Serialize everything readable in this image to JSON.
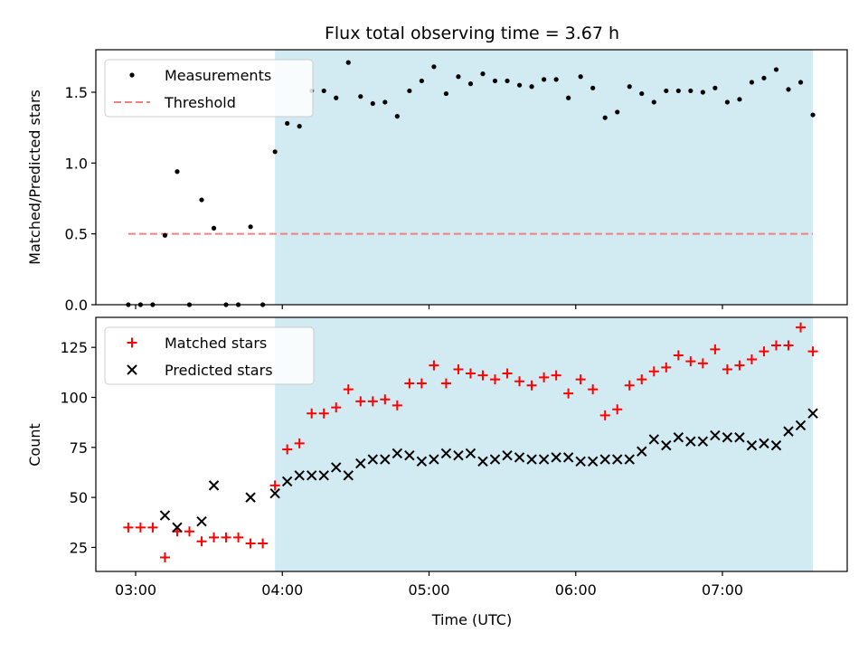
{
  "chart_data": {
    "title": "Flux total observing time = 3.67 h",
    "xlabel": "Time (UTC)",
    "x_ticks": [
      "03:00",
      "04:00",
      "05:00",
      "06:00",
      "07:00"
    ],
    "colors": {
      "highlight": "#add8e6",
      "threshold": "#f08080",
      "measurements": "#000000",
      "matched": "#ff0000",
      "predicted": "#000000"
    },
    "highlight_span": [
      "03:57",
      "07:37"
    ],
    "panels": [
      {
        "type": "scatter",
        "ylabel": "Matched/Predicted stars",
        "ylim": [
          0,
          1.8
        ],
        "yticks": [
          "0.0",
          "0.5",
          "1.0",
          "1.5"
        ],
        "legend": {
          "location": "upper-left",
          "entries": [
            "Measurements",
            "Threshold"
          ]
        },
        "threshold": {
          "name": "Threshold",
          "value": 0.5,
          "x_range": [
            "02:57",
            "07:37"
          ]
        },
        "series": [
          {
            "name": "Measurements",
            "marker": "dot",
            "x": [
              "02:57",
              "03:02",
              "03:07",
              "03:12",
              "03:17",
              "03:22",
              "03:27",
              "03:32",
              "03:37",
              "03:42",
              "03:47",
              "03:52",
              "03:57",
              "04:02",
              "04:07",
              "04:12",
              "04:17",
              "04:22",
              "04:27",
              "04:32",
              "04:37",
              "04:42",
              "04:47",
              "04:52",
              "04:57",
              "05:02",
              "05:07",
              "05:12",
              "05:17",
              "05:22",
              "05:27",
              "05:32",
              "05:37",
              "05:42",
              "05:47",
              "05:52",
              "05:57",
              "06:02",
              "06:07",
              "06:12",
              "06:17",
              "06:22",
              "06:27",
              "06:32",
              "06:37",
              "06:42",
              "06:47",
              "06:52",
              "06:57",
              "07:02",
              "07:07",
              "07:12",
              "07:17",
              "07:22",
              "07:27",
              "07:32",
              "07:37"
            ],
            "y": [
              0.0,
              0.0,
              0.0,
              0.49,
              0.94,
              0.0,
              0.74,
              0.54,
              0.0,
              0.0,
              0.55,
              0.0,
              1.08,
              1.28,
              1.26,
              1.51,
              1.51,
              1.46,
              1.71,
              1.47,
              1.42,
              1.43,
              1.33,
              1.51,
              1.58,
              1.68,
              1.49,
              1.61,
              1.56,
              1.63,
              1.58,
              1.58,
              1.55,
              1.54,
              1.59,
              1.59,
              1.46,
              1.61,
              1.53,
              1.32,
              1.36,
              1.54,
              1.49,
              1.43,
              1.51,
              1.51,
              1.51,
              1.5,
              1.53,
              1.43,
              1.45,
              1.57,
              1.6,
              1.66,
              1.52,
              1.57,
              1.34
            ]
          }
        ]
      },
      {
        "type": "scatter",
        "ylabel": "Count",
        "ylim": [
          13,
          140
        ],
        "yticks": [
          "25",
          "50",
          "75",
          "100",
          "125"
        ],
        "legend": {
          "location": "upper-left",
          "entries": [
            "Matched stars",
            "Predicted stars"
          ]
        },
        "series": [
          {
            "name": "Matched stars",
            "marker": "plus",
            "x": [
              "02:57",
              "03:02",
              "03:07",
              "03:12",
              "03:17",
              "03:22",
              "03:27",
              "03:32",
              "03:37",
              "03:42",
              "03:47",
              "03:52",
              "03:57",
              "04:02",
              "04:07",
              "04:12",
              "04:17",
              "04:22",
              "04:27",
              "04:32",
              "04:37",
              "04:42",
              "04:47",
              "04:52",
              "04:57",
              "05:02",
              "05:07",
              "05:12",
              "05:17",
              "05:22",
              "05:27",
              "05:32",
              "05:37",
              "05:42",
              "05:47",
              "05:52",
              "05:57",
              "06:02",
              "06:07",
              "06:12",
              "06:17",
              "06:22",
              "06:27",
              "06:32",
              "06:37",
              "06:42",
              "06:47",
              "06:52",
              "06:57",
              "07:02",
              "07:07",
              "07:12",
              "07:17",
              "07:22",
              "07:27",
              "07:32",
              "07:37"
            ],
            "y": [
              35,
              35,
              35,
              20,
              33,
              33,
              28,
              30,
              30,
              30,
              27,
              27,
              56,
              74,
              77,
              92,
              92,
              95,
              104,
              98,
              98,
              99,
              96,
              107,
              107,
              116,
              107,
              114,
              112,
              111,
              109,
              112,
              108,
              106,
              110,
              111,
              102,
              109,
              104,
              91,
              94,
              106,
              109,
              113,
              115,
              121,
              118,
              117,
              124,
              114,
              116,
              119,
              123,
              126,
              126,
              135,
              123
            ]
          },
          {
            "name": "Predicted stars",
            "marker": "x",
            "x": [
              "03:12",
              "03:17",
              "03:27",
              "03:32",
              "03:47",
              "03:57",
              "04:02",
              "04:07",
              "04:12",
              "04:17",
              "04:22",
              "04:27",
              "04:32",
              "04:37",
              "04:42",
              "04:47",
              "04:52",
              "04:57",
              "05:02",
              "05:07",
              "05:12",
              "05:17",
              "05:22",
              "05:27",
              "05:32",
              "05:37",
              "05:42",
              "05:47",
              "05:52",
              "05:57",
              "06:02",
              "06:07",
              "06:12",
              "06:17",
              "06:22",
              "06:27",
              "06:32",
              "06:37",
              "06:42",
              "06:47",
              "06:52",
              "06:57",
              "07:02",
              "07:07",
              "07:12",
              "07:17",
              "07:22",
              "07:27",
              "07:32",
              "07:37"
            ],
            "y": [
              41,
              35,
              38,
              56,
              50,
              52,
              58,
              61,
              61,
              61,
              65,
              61,
              67,
              69,
              69,
              72,
              71,
              68,
              69,
              72,
              71,
              72,
              68,
              69,
              71,
              70,
              69,
              69,
              70,
              70,
              68,
              68,
              69,
              69,
              69,
              73,
              79,
              76,
              80,
              78,
              78,
              81,
              80,
              80,
              76,
              77,
              76,
              83,
              86,
              92
            ]
          }
        ]
      }
    ]
  }
}
